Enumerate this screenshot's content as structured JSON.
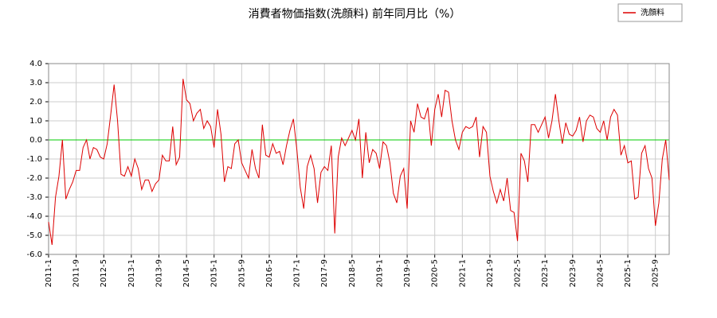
{
  "chart_data": {
    "type": "line",
    "title": "消費者物価指数(洗顔料) 前年同月比（%）",
    "categories": [
      "2011-1",
      null,
      null,
      null,
      null,
      null,
      null,
      null,
      "2011-9",
      null,
      null,
      null,
      null,
      null,
      null,
      null,
      "2012-5",
      null,
      null,
      null,
      null,
      null,
      null,
      null,
      "2013-1",
      null,
      null,
      null,
      null,
      null,
      null,
      null,
      "2013-9",
      null,
      null,
      null,
      null,
      null,
      null,
      null,
      "2014-5",
      null,
      null,
      null,
      null,
      null,
      null,
      null,
      "2015-1",
      null,
      null,
      null,
      null,
      null,
      null,
      null,
      "2015-9",
      null,
      null,
      null,
      null,
      null,
      null,
      null,
      "2016-5",
      null,
      null,
      null,
      null,
      null,
      null,
      null,
      "2017-1",
      null,
      null,
      null,
      null,
      null,
      null,
      null,
      "2017-9",
      null,
      null,
      null,
      null,
      null,
      null,
      null,
      "2018-5",
      null,
      null,
      null,
      null,
      null,
      null,
      null,
      "2019-1",
      null,
      null,
      null,
      null,
      null,
      null,
      null,
      "2019-9",
      null,
      null,
      null,
      null,
      null,
      null,
      null,
      "2020-5",
      null,
      null,
      null,
      null,
      null,
      null,
      null,
      "2021-1",
      null,
      null,
      null,
      null,
      null,
      null,
      null,
      "2021-9",
      null,
      null,
      null,
      null,
      null,
      null,
      null,
      "2022-5",
      null,
      null,
      null,
      null,
      null,
      null,
      null,
      "2023-1",
      null,
      null,
      null,
      null,
      null,
      null,
      null,
      "2023-9",
      null,
      null,
      null,
      null,
      null,
      null,
      null,
      "2024-5",
      null,
      null,
      null,
      null,
      null,
      null,
      null,
      "2025-1",
      null,
      null,
      null,
      null,
      null,
      null,
      null,
      "2025-9",
      null,
      null,
      null,
      null
    ],
    "series": [
      {
        "name": "洗顔料",
        "color": "#dd0000",
        "values": [
          -4.3,
          -5.5,
          -3.0,
          -1.9,
          0.0,
          -3.1,
          -2.6,
          -2.2,
          -1.6,
          -1.6,
          -0.4,
          0.0,
          -1.0,
          -0.4,
          -0.5,
          -0.9,
          -1.0,
          -0.2,
          1.3,
          2.9,
          1.0,
          -1.8,
          -1.9,
          -1.4,
          -1.9,
          -1.0,
          -1.5,
          -2.6,
          -2.1,
          -2.1,
          -2.7,
          -2.3,
          -2.1,
          -0.8,
          -1.1,
          -1.1,
          0.7,
          -1.3,
          -0.9,
          3.2,
          2.1,
          1.9,
          1.0,
          1.4,
          1.6,
          0.6,
          1.0,
          0.7,
          -0.4,
          1.6,
          0.3,
          -2.2,
          -1.4,
          -1.5,
          -0.2,
          0.0,
          -1.2,
          -1.6,
          -2.0,
          -0.5,
          -1.5,
          -2.0,
          0.8,
          -0.8,
          -0.9,
          -0.2,
          -0.7,
          -0.6,
          -1.3,
          -0.3,
          0.5,
          1.1,
          -0.5,
          -2.5,
          -3.6,
          -1.4,
          -0.8,
          -1.5,
          -3.3,
          -1.7,
          -1.4,
          -1.6,
          -0.3,
          -4.9,
          -0.9,
          0.1,
          -0.3,
          0.1,
          0.5,
          0.0,
          1.1,
          -2.0,
          0.4,
          -1.2,
          -0.5,
          -0.7,
          -1.5,
          -0.1,
          -0.3,
          -1.2,
          -2.8,
          -3.3,
          -1.9,
          -1.5,
          -3.6,
          1.0,
          0.4,
          1.9,
          1.2,
          1.1,
          1.7,
          -0.3,
          1.6,
          2.4,
          1.2,
          2.6,
          2.5,
          1.0,
          0.0,
          -0.5,
          0.4,
          0.7,
          0.6,
          0.7,
          1.2,
          -0.9,
          0.7,
          0.4,
          -1.9,
          -2.7,
          -3.3,
          -2.6,
          -3.2,
          -2.0,
          -3.7,
          -3.8,
          -5.3,
          -0.7,
          -1.1,
          -2.2,
          0.8,
          0.8,
          0.4,
          0.8,
          1.2,
          0.1,
          1.0,
          2.4,
          1.0,
          -0.2,
          0.9,
          0.3,
          0.2,
          0.5,
          1.2,
          -0.1,
          1.0,
          1.3,
          1.2,
          0.6,
          0.4,
          1.0,
          0.0,
          1.2,
          1.6,
          1.3,
          -0.8,
          -0.3,
          -1.2,
          -1.1,
          -3.1,
          -3.0,
          -0.7,
          -0.3,
          -1.5,
          -2.0,
          -4.5,
          -3.3,
          -1.0,
          0.0,
          -2.1
        ]
      }
    ],
    "ylim": [
      -6,
      4
    ],
    "yticks": [
      {
        "value": -6,
        "label": "-6.0"
      },
      {
        "value": -5,
        "label": "-5.0"
      },
      {
        "value": -4,
        "label": "-4.0"
      },
      {
        "value": -3,
        "label": "-3.0"
      },
      {
        "value": -2,
        "label": "-2.0"
      },
      {
        "value": -1,
        "label": "-1.0"
      },
      {
        "value": 0,
        "label": "0.0"
      },
      {
        "value": 1,
        "label": "1.0"
      },
      {
        "value": 2,
        "label": "2.0"
      },
      {
        "value": 3,
        "label": "3.0"
      },
      {
        "value": 4,
        "label": "4.0"
      }
    ],
    "grid": true,
    "zero_line_color": "#00cc00",
    "legend": "top-right"
  }
}
